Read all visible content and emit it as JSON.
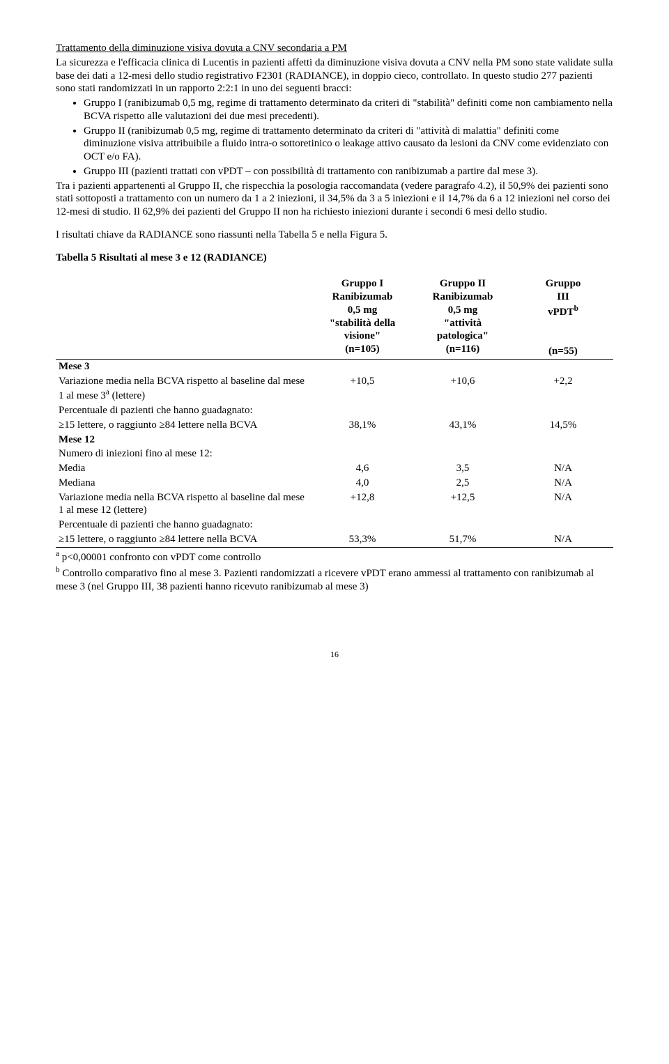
{
  "title": "Trattamento della diminuzione visiva dovuta a CNV secondaria a PM",
  "intro_p1": "La sicurezza e l'efficacia clinica di Lucentis in pazienti affetti da diminuzione visiva dovuta a CNV nella PM sono state validate sulla base dei dati a 12-mesi dello studio registrativo F2301 (RADIANCE), in doppio cieco, controllato. In questo studio 277 pazienti sono stati randomizzati in un rapporto 2:2:1 in uno dei seguenti bracci:",
  "bullets": [
    "Gruppo I (ranibizumab 0,5 mg, regime di trattamento determinato da criteri di \"stabilità\" definiti come non cambiamento nella BCVA rispetto alle valutazioni dei due mesi precedenti).",
    "Gruppo II (ranibizumab 0,5 mg, regime di trattamento determinato da criteri di \"attività di malattia\" definiti come diminuzione visiva attribuibile a fluido intra-o sottoretinico o leakage attivo causato da lesioni da CNV come evidenziato con OCT e/o FA).",
    "Gruppo III (pazienti trattati con vPDT – con possibilità di trattamento con ranibizumab a partire dal mese 3)."
  ],
  "intro_p2": "Tra i pazienti appartenenti al Gruppo II, che rispecchia la posologia raccomandata (vedere paragrafo 4.2), il 50,9% dei pazienti sono stati sottoposti a trattamento con un numero da 1 a 2 iniezioni, il 34,5% da 3 a 5 iniezioni e il 14,7% da 6 a 12 iniezioni nel corso dei 12-mesi di studio. Il 62,9% dei pazienti del Gruppo II non ha richiesto iniezioni durante i secondi 6 mesi dello studio.",
  "summary_line": "I risultati chiave da RADIANCE sono riassunti nella Tabella 5 e nella Figura 5.",
  "table_title": "Tabella 5     Risultati al mese 3 e 12 (RADIANCE)",
  "table": {
    "head": {
      "c1_l1": "Gruppo I",
      "c1_l2": "Ranibizumab",
      "c1_l3": "0,5 mg",
      "c1_l4": "\"stabilità della",
      "c1_l5": "visione\"",
      "c1_l6": "(n=105)",
      "c2_l1": "Gruppo II",
      "c2_l2": "Ranibizumab",
      "c2_l3": "0,5 mg",
      "c2_l4": "\"attività",
      "c2_l5": "patologica\"",
      "c2_l6": "(n=116)",
      "c3_l1": "Gruppo",
      "c3_l2": "III",
      "c3_l3_pre": "vPDT",
      "c3_l3_sup": "b",
      "c3_l6": "(n=55)"
    },
    "rows": {
      "mese3": "Mese 3",
      "r1_label_pre": "Variazione media nella BCVA rispetto al baseline dal mese 1 al mese 3",
      "r1_label_sup": "a",
      "r1_label_post": " (lettere)",
      "r1_v1": "+10,5",
      "r1_v2": "+10,6",
      "r1_v3": "+2,2",
      "r2_label": "Percentuale di pazienti che hanno guadagnato:",
      "r3_label": "≥15 lettere, o raggiunto ≥84 lettere nella BCVA",
      "r3_v1": "38,1%",
      "r3_v2": "43,1%",
      "r3_v3": "14,5%",
      "mese12": "Mese 12",
      "r4_label": "Numero di iniezioni fino al mese 12:",
      "r5_label": "Media",
      "r5_v1": "4,6",
      "r5_v2": "3,5",
      "r5_v3": "N/A",
      "r6_label": "Mediana",
      "r6_v1": "4,0",
      "r6_v2": "2,5",
      "r6_v3": "N/A",
      "r7_label": "Variazione media nella BCVA rispetto al baseline dal mese 1 al mese 12 (lettere)",
      "r7_v1": "+12,8",
      "r7_v2": "+12,5",
      "r7_v3": "N/A",
      "r8_label": "Percentuale di pazienti che hanno guadagnato:",
      "r9_label": "≥15 lettere, o raggiunto ≥84 lettere nella BCVA",
      "r9_v1": "53,3%",
      "r9_v2": "51,7%",
      "r9_v3": "N/A"
    }
  },
  "foot_a_sup": "a",
  "foot_a": " p<0,00001 confronto con vPDT come controllo",
  "foot_b_sup": "b",
  "foot_b": " Controllo comparativo fino al mese 3. Pazienti randomizzati a ricevere vPDT erano ammessi al trattamento con ranibizumab al mese 3 (nel Gruppo III, 38 pazienti hanno ricevuto ranibizumab al mese 3)",
  "page_num": "16"
}
